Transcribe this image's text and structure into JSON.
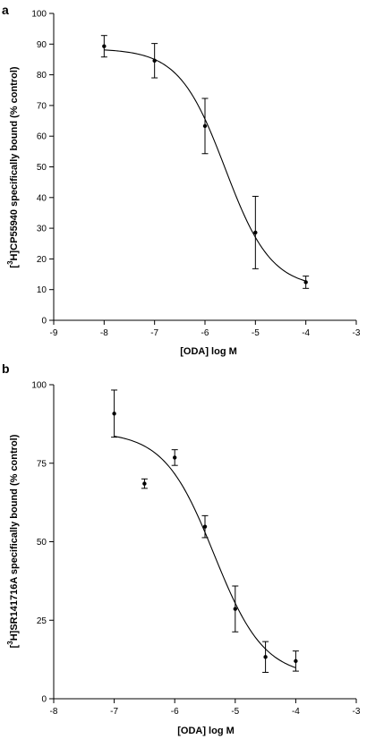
{
  "chart_data": [
    {
      "type": "scatter",
      "panel": "a",
      "xlabel": "[ODA] log M",
      "ylabel_parts": [
        "[",
        "3",
        "H]CP55940 specifically bound (% control)"
      ],
      "xlim": [
        -9,
        -3
      ],
      "ylim": [
        0,
        100
      ],
      "xticks": [
        -9,
        -8,
        -7,
        -6,
        -5,
        -4,
        -3
      ],
      "yticks": [
        0,
        10,
        20,
        30,
        40,
        50,
        60,
        70,
        80,
        90,
        100
      ],
      "grid": false,
      "series": [
        {
          "x": [
            -8,
            -7,
            -6,
            -5,
            -4
          ],
          "y": [
            89.3,
            84.6,
            63.3,
            28.6,
            12.4
          ],
          "error": [
            3.5,
            5.6,
            9.0,
            11.8,
            2.0
          ]
        }
      ],
      "fit": {
        "top": 88.5,
        "bottom": 10.5,
        "logIC50": -5.6,
        "hill": 0.95
      }
    },
    {
      "type": "scatter",
      "panel": "b",
      "xlabel": "[ODA] log M",
      "ylabel_parts": [
        "[",
        "3",
        "H]SR141716A specifically bound (% control)"
      ],
      "xlim": [
        -8,
        -3
      ],
      "ylim": [
        0,
        100
      ],
      "xticks": [
        -8,
        -7,
        -6,
        -5,
        -4,
        -3
      ],
      "yticks": [
        0,
        25,
        50,
        75,
        100
      ],
      "grid": false,
      "series": [
        {
          "x": [
            -7,
            -6.5,
            -6,
            -5.5,
            -5,
            -4.5,
            -4
          ],
          "y": [
            90.8,
            68.5,
            76.8,
            54.8,
            28.6,
            13.3,
            12.0
          ],
          "error": [
            7.5,
            1.5,
            2.5,
            3.5,
            7.3,
            4.9,
            3.2
          ]
        }
      ],
      "fit": {
        "top": 85,
        "bottom": 7,
        "logIC50": -5.35,
        "hill": 1.05
      }
    }
  ]
}
